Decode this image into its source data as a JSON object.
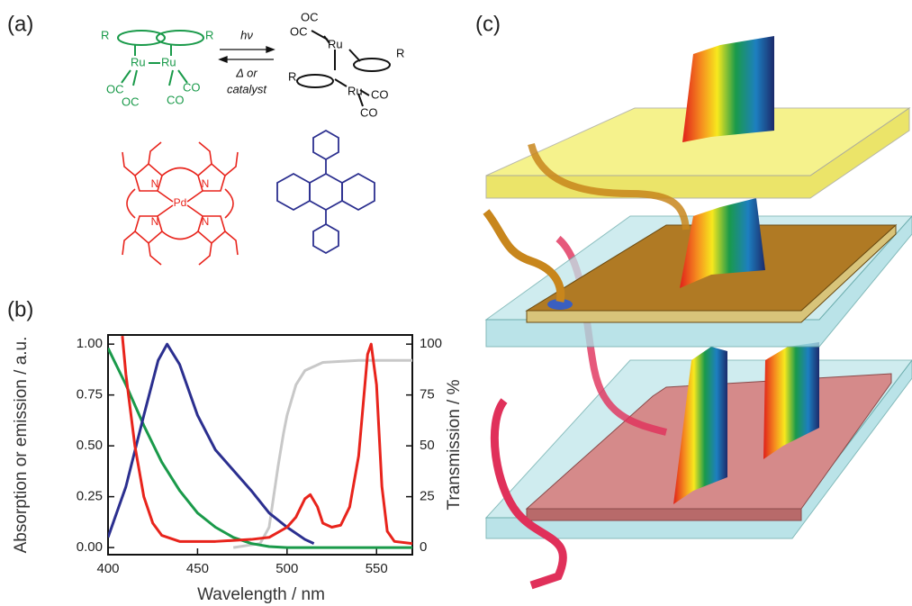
{
  "panel_labels": [
    "(a)",
    "(b)",
    "(c)"
  ],
  "panel_a": {
    "dimer": {
      "r_left": "R",
      "r_right": "R",
      "ru_left": "Ru",
      "ru_right": "Ru",
      "co": [
        "OC",
        "OC",
        "CO",
        "CO"
      ]
    },
    "arrow": {
      "forward": "hν",
      "backward_1": "Δ or",
      "backward_2": "catalyst"
    },
    "photoisomer": {
      "ru_top": "Ru",
      "ru_bottom": "Ru",
      "r_top": "R",
      "r_bottom": "R",
      "co": [
        "OC",
        "OC",
        "CO",
        "CO"
      ]
    },
    "porphyrin": {
      "metal": "Pd",
      "n": [
        "N",
        "N",
        "N",
        "N"
      ]
    }
  },
  "chart_data": {
    "type": "line",
    "x_label": "Wavelength / nm",
    "y_label": "Absorption or emission / a.u.",
    "y2_label": "Transmission / %",
    "xlim": [
      400,
      570
    ],
    "xticks": [
      400,
      450,
      500,
      550
    ],
    "ylim": [
      -0.035,
      1.045
    ],
    "yticks": [
      {
        "value": 0,
        "label": "0.00"
      },
      {
        "value": 0.25,
        "label": "0.25"
      },
      {
        "value": 0.5,
        "label": "0.50"
      },
      {
        "value": 0.75,
        "label": "0.75"
      },
      {
        "value": 1,
        "label": "1.00"
      }
    ],
    "y2lim": [
      -3.5,
      104.5
    ],
    "y2ticks": [
      0,
      25,
      50,
      75,
      100
    ],
    "series": [
      {
        "color": "#c8c8c8",
        "axis": "y2",
        "x": [
          470,
          485,
          490,
          493,
          495,
          498,
          500,
          505,
          510,
          520,
          540,
          570
        ],
        "values": [
          0,
          2,
          10,
          28,
          40,
          56,
          65,
          80,
          87,
          91,
          92,
          92
        ]
      },
      {
        "color": "#1a9a4a",
        "x": [
          400,
          410,
          420,
          430,
          440,
          450,
          460,
          470,
          480,
          490,
          500,
          570
        ],
        "values": [
          0.98,
          0.8,
          0.6,
          0.42,
          0.28,
          0.17,
          0.1,
          0.05,
          0.02,
          0.005,
          0,
          0
        ]
      },
      {
        "color": "#2b2f8f",
        "x": [
          400,
          410,
          420,
          428,
          433,
          440,
          450,
          460,
          470,
          480,
          490,
          500,
          510,
          515
        ],
        "values": [
          0.05,
          0.3,
          0.65,
          0.92,
          1.0,
          0.9,
          0.65,
          0.48,
          0.38,
          0.28,
          0.17,
          0.1,
          0.04,
          0.02
        ]
      },
      {
        "color": "#e8241c",
        "x": [
          408,
          410,
          415,
          420,
          425,
          430,
          440,
          460,
          480,
          490,
          500,
          505,
          510,
          513,
          517,
          520,
          525,
          530,
          535,
          540,
          545,
          547,
          550,
          553,
          556,
          560,
          570
        ],
        "values": [
          1.04,
          0.85,
          0.5,
          0.25,
          0.12,
          0.06,
          0.03,
          0.03,
          0.04,
          0.05,
          0.1,
          0.15,
          0.24,
          0.26,
          0.2,
          0.12,
          0.1,
          0.11,
          0.2,
          0.45,
          0.95,
          1.0,
          0.8,
          0.3,
          0.08,
          0.03,
          0.02
        ]
      }
    ]
  }
}
